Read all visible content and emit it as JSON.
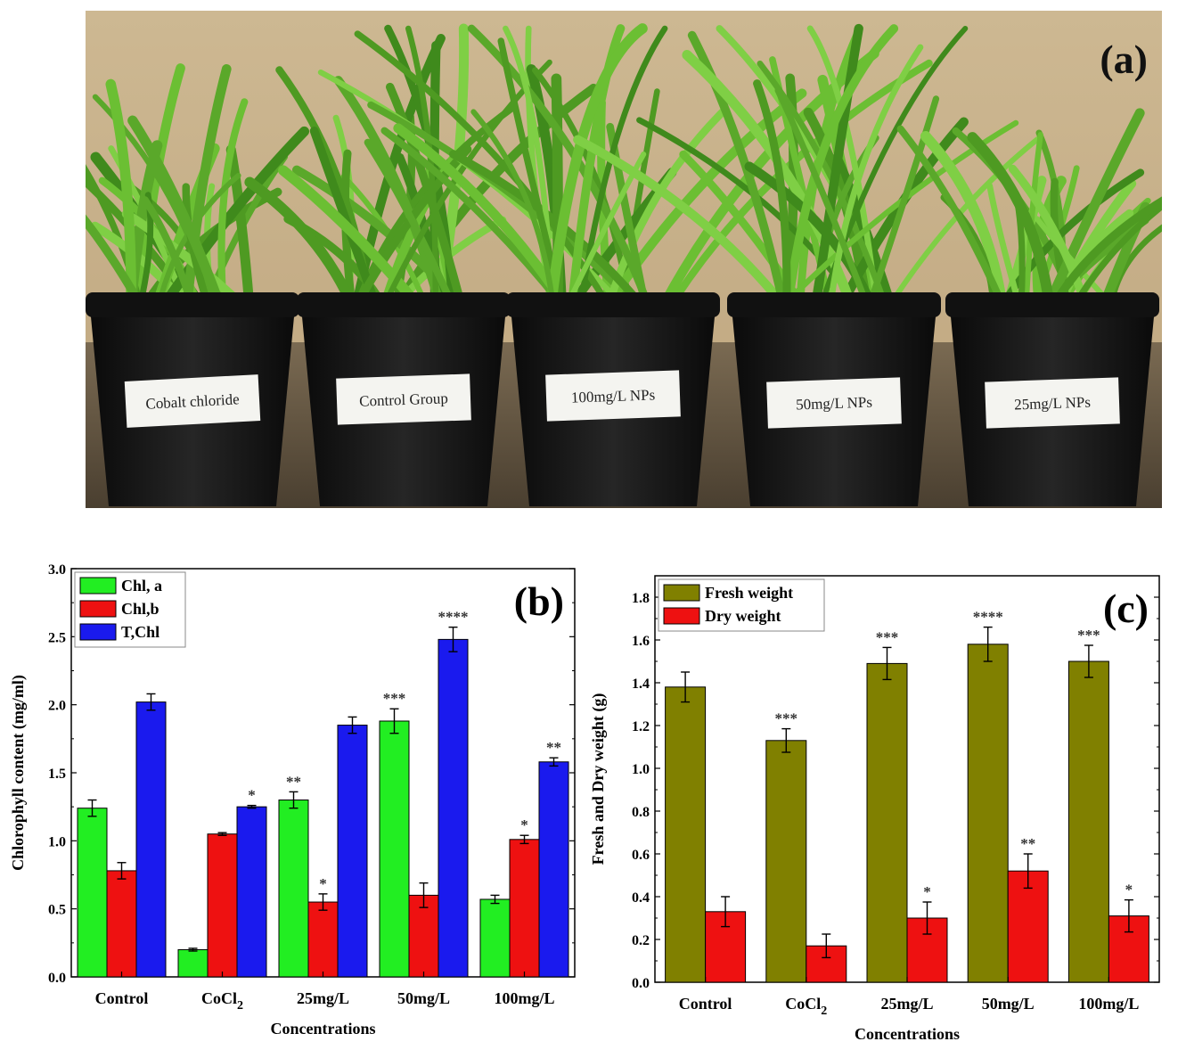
{
  "panel_a": {
    "label": "(a)",
    "pots": [
      {
        "label": "Cobalt chloride"
      },
      {
        "label": "Control Group"
      },
      {
        "label": "100mg/L NPs"
      },
      {
        "label": "50mg/L NPs"
      },
      {
        "label": "25mg/L NPs"
      }
    ]
  },
  "chart_data": [
    {
      "type": "bar",
      "panel_label": "(b)",
      "title": "",
      "xlabel": "Concentrations",
      "ylabel": "Chlorophyll content (mg/ml)",
      "ylim": [
        0,
        3.0
      ],
      "yticks": [
        "0.0",
        "0.5",
        "1.0",
        "1.5",
        "2.0",
        "2.5",
        "3.0"
      ],
      "categories": [
        "Control",
        "CoCl",
        "25mg/L",
        "50mg/L",
        "100mg/L"
      ],
      "category_subscripts": [
        "",
        "2",
        "",
        "",
        ""
      ],
      "legend_position": "top-left",
      "series": [
        {
          "name": "Chl, a",
          "color": "#22ee22",
          "values": [
            1.24,
            0.2,
            1.3,
            1.88,
            0.57
          ],
          "errors": [
            0.06,
            0.01,
            0.06,
            0.09,
            0.03
          ],
          "stars": [
            "",
            "",
            "**",
            "***",
            ""
          ]
        },
        {
          "name": "Chl,b",
          "color": "#ee1111",
          "values": [
            0.78,
            1.05,
            0.55,
            0.6,
            1.01
          ],
          "errors": [
            0.06,
            0.01,
            0.06,
            0.09,
            0.03
          ],
          "stars": [
            "",
            "",
            "*",
            "",
            "*"
          ]
        },
        {
          "name": "T,Chl",
          "color": "#1a1aee",
          "values": [
            2.02,
            1.25,
            1.85,
            2.48,
            1.58
          ],
          "errors": [
            0.06,
            0.01,
            0.06,
            0.09,
            0.03
          ],
          "stars": [
            "",
            "*",
            "",
            "****",
            "**"
          ]
        }
      ]
    },
    {
      "type": "bar",
      "panel_label": "(c)",
      "title": "",
      "xlabel": "Concentrations",
      "ylabel": "Fresh and Dry weight (g)",
      "ylim": [
        0,
        1.9
      ],
      "yticks": [
        "0.0",
        "0.2",
        "0.4",
        "0.6",
        "0.8",
        "1.0",
        "1.2",
        "1.4",
        "1.6",
        "1.8"
      ],
      "categories": [
        "Control",
        "CoCl",
        "25mg/L",
        "50mg/L",
        "100mg/L"
      ],
      "category_subscripts": [
        "",
        "2",
        "",
        "",
        ""
      ],
      "legend_position": "top-left",
      "series": [
        {
          "name": "Fresh weight",
          "color": "#808000",
          "values": [
            1.38,
            1.13,
            1.49,
            1.58,
            1.5
          ],
          "errors": [
            0.07,
            0.055,
            0.075,
            0.08,
            0.075
          ],
          "stars": [
            "",
            "***",
            "***",
            "****",
            "***"
          ]
        },
        {
          "name": "Dry weight",
          "color": "#ee1111",
          "values": [
            0.33,
            0.17,
            0.3,
            0.52,
            0.31
          ],
          "errors": [
            0.07,
            0.055,
            0.075,
            0.08,
            0.075
          ],
          "stars": [
            "",
            "",
            "*",
            "**",
            "*"
          ]
        }
      ]
    }
  ]
}
